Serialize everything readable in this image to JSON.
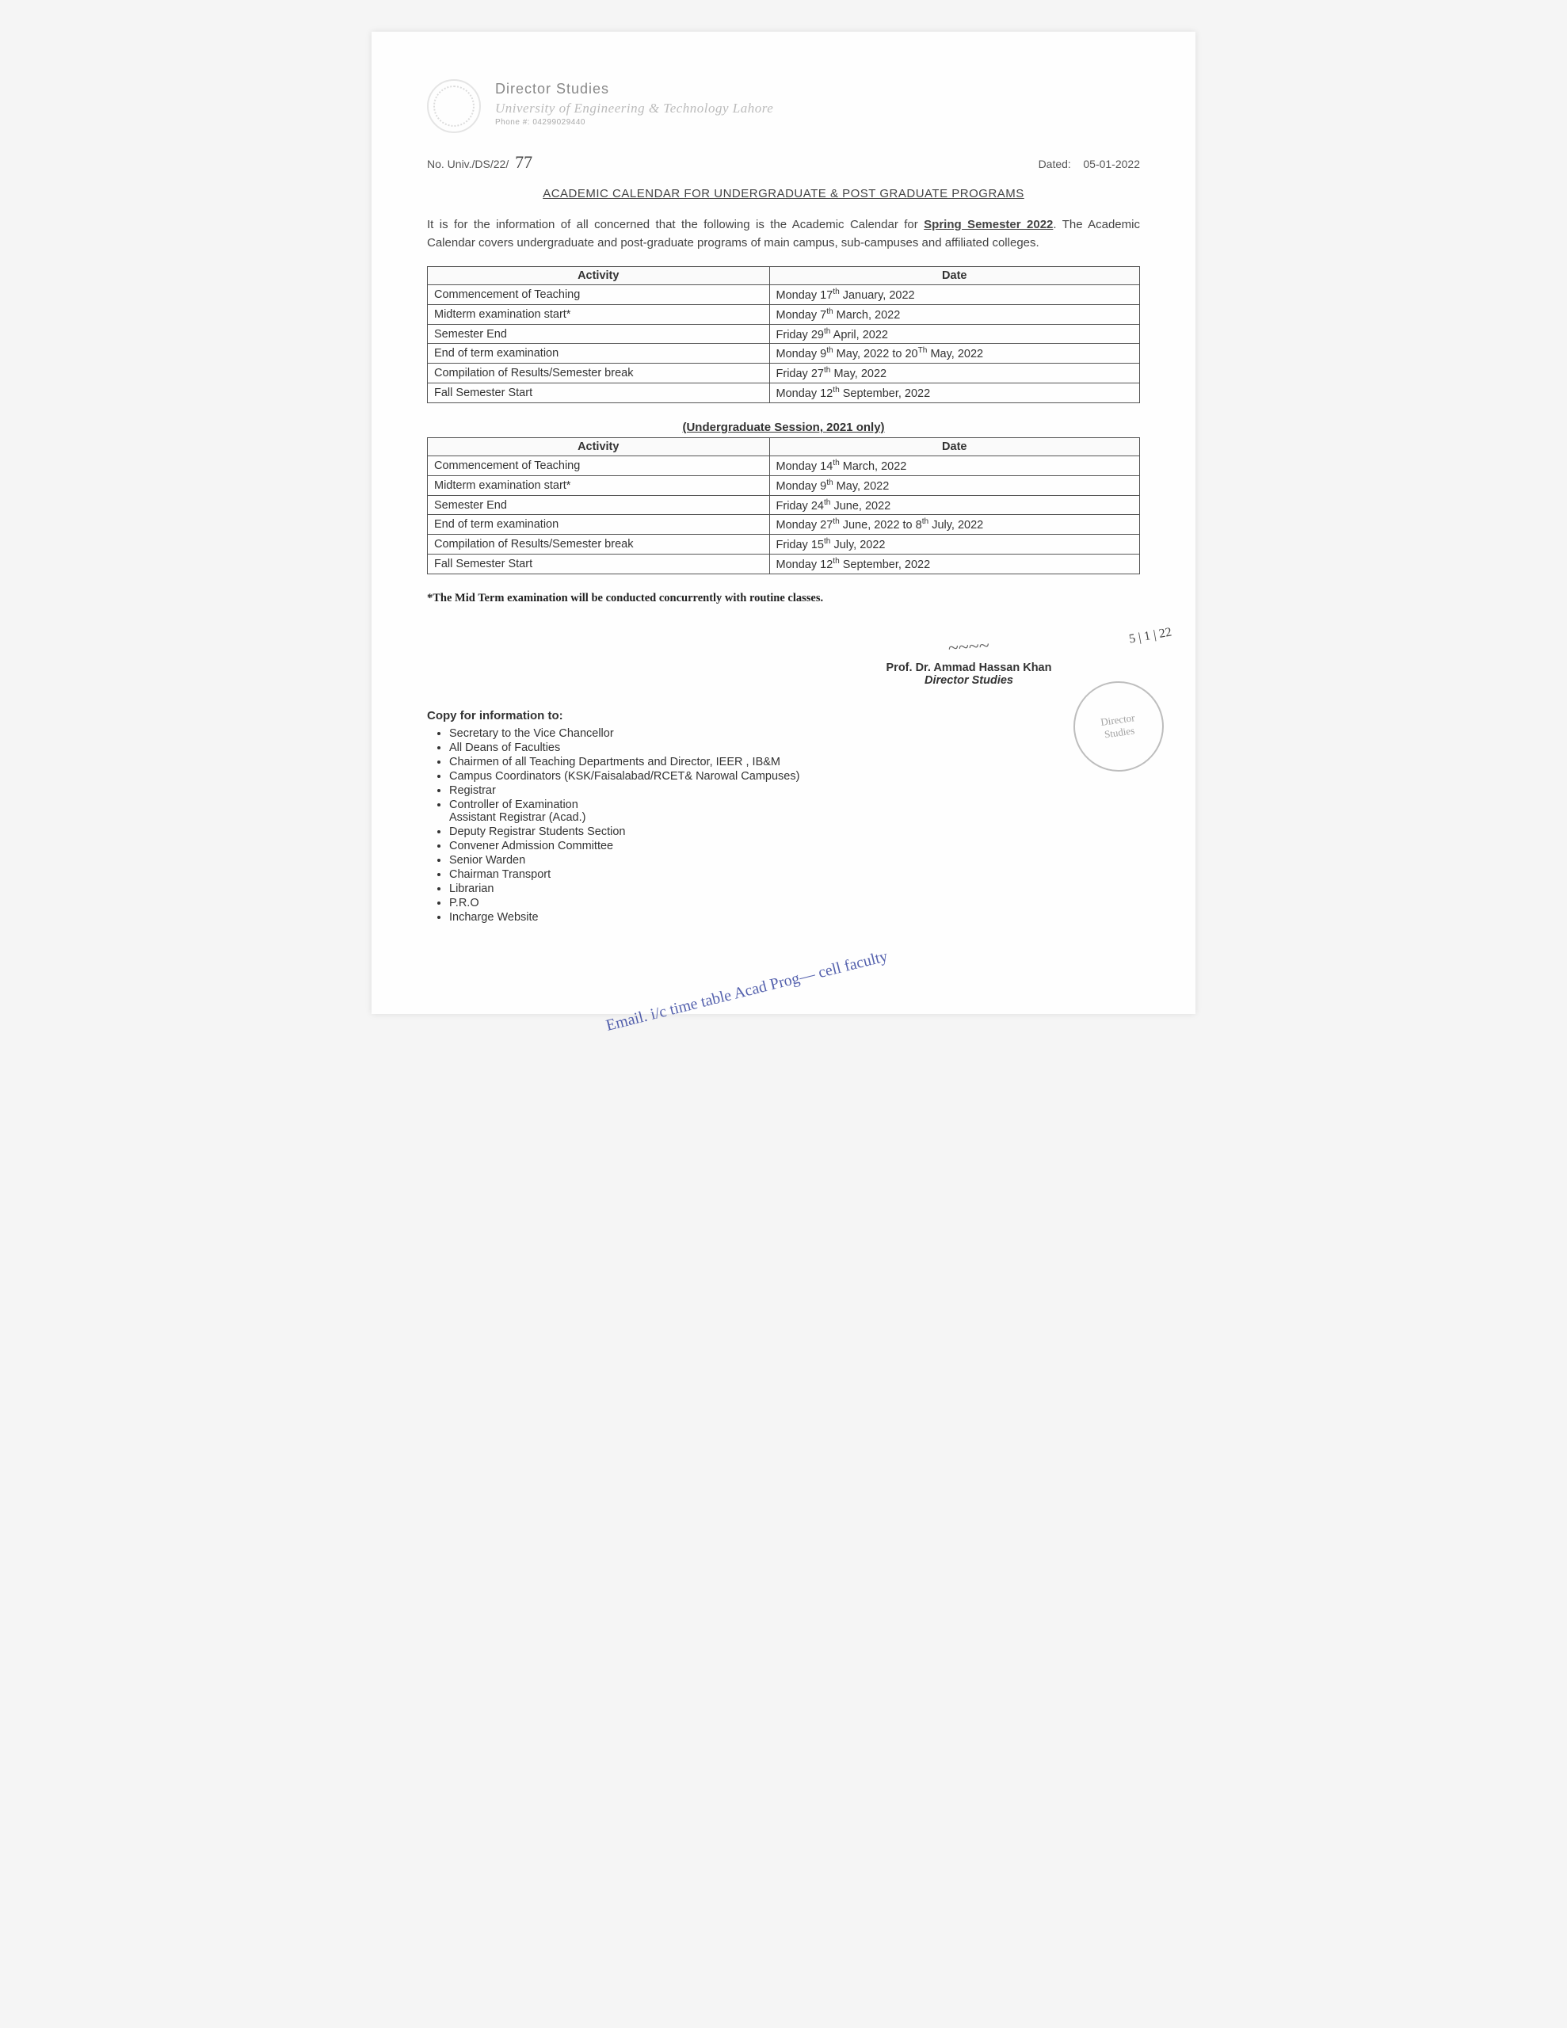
{
  "header": {
    "department": "Director Studies",
    "university": "University of Engineering & Technology Lahore",
    "phone": "Phone #: 04299029440"
  },
  "ref": {
    "prefix": "No. Univ./DS/22/",
    "number": "77",
    "dated_label": "Dated:",
    "dated": "05-01-2022"
  },
  "title": "ACADEMIC CALENDAR FOR UNDERGRADUATE & POST GRADUATE PROGRAMS",
  "intro_1": "It is for the information of all concerned that the following is the Academic Calendar for ",
  "intro_sem": "Spring Semester 2022",
  "intro_2": ". The Academic Calendar covers undergraduate and post-graduate programs of main campus, sub-campuses and affiliated colleges.",
  "table1": {
    "headers": [
      "Activity",
      "Date"
    ],
    "rows": [
      [
        "Commencement of Teaching",
        "Monday 17<sup>th</sup> January, 2022"
      ],
      [
        "Midterm examination start*",
        "Monday 7<sup>th</sup> March, 2022"
      ],
      [
        "Semester End",
        "Friday 29<sup>th</sup> April, 2022"
      ],
      [
        "End of term examination",
        "Monday 9<sup>th</sup> May, 2022 to 20<sup>Th</sup> May, 2022"
      ],
      [
        "Compilation of Results/Semester break",
        "Friday 27<sup>th</sup> May, 2022"
      ],
      [
        "Fall Semester Start",
        "Monday 12<sup>th</sup> September, 2022"
      ]
    ]
  },
  "subhead": "(Undergraduate Session, 2021 only)",
  "table2": {
    "headers": [
      "Activity",
      "Date"
    ],
    "rows": [
      [
        "Commencement of Teaching",
        "Monday 14<sup>th</sup> March, 2022"
      ],
      [
        "Midterm examination start*",
        "Monday 9<sup>th</sup> May, 2022"
      ],
      [
        "Semester End",
        "Friday 24<sup>th</sup> June, 2022"
      ],
      [
        "End of term examination",
        "Monday 27<sup>th</sup> June, 2022 to 8<sup>th</sup> July, 2022"
      ],
      [
        "Compilation of Results/Semester break",
        "Friday 15<sup>th</sup> July, 2022"
      ],
      [
        "Fall Semester Start",
        "Monday 12<sup>th</sup> September, 2022"
      ]
    ]
  },
  "note": "*The Mid Term examination will be conducted concurrently with routine classes.",
  "signature": {
    "name": "Prof. Dr. Ammad Hassan Khan",
    "title": "Director Studies",
    "hand_date": "5 | 1 | 22"
  },
  "stamp": {
    "line1": "Director",
    "line2": "Studies"
  },
  "copy_head": "Copy for information to:",
  "copy_list": [
    "Secretary to the Vice Chancellor",
    "All Deans of Faculties",
    "Chairmen of all Teaching Departments and Director, IEER , IB&M",
    "Campus Coordinators (KSK/Faisalabad/RCET& Narowal Campuses)",
    "Registrar",
    "Controller of Examination",
    "Assistant Registrar (Acad.)",
    "Deputy Registrar Students Section",
    "Convener Admission Committee",
    "Senior Warden",
    "Chairman Transport",
    "Librarian",
    "P.R.O",
    "Incharge Website"
  ],
  "handwriting": "Email.  i/c time table  Acad Prog—  cell  faculty"
}
